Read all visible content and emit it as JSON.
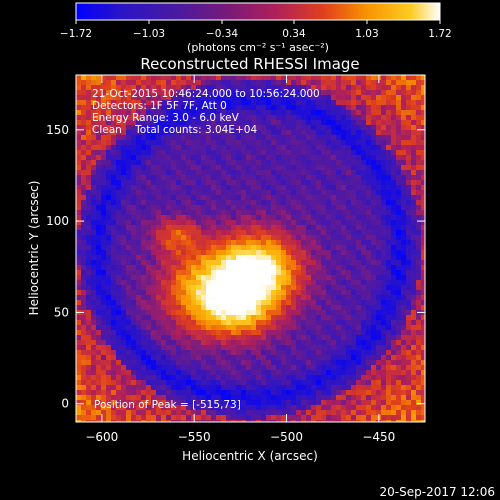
{
  "chart_data": {
    "type": "heatmap",
    "title": "Reconstructed RHESSI Image",
    "xlabel": "Heliocentric X (arcsec)",
    "ylabel": "Heliocentric Y (arcsec)",
    "xlim": [
      -614,
      -425
    ],
    "ylim": [
      -10,
      180
    ],
    "x_ticks": [
      -600,
      -550,
      -500,
      -450
    ],
    "x_tick_labels": [
      "−600",
      "−550",
      "−500",
      "−450"
    ],
    "y_ticks": [
      0,
      50,
      100,
      150
    ],
    "y_tick_labels": [
      "0",
      "50",
      "100",
      "150"
    ],
    "colorbar": {
      "min": -1.72,
      "max": 1.72,
      "ticks": [
        -1.72,
        -1.03,
        -0.34,
        0.34,
        1.03,
        1.72
      ],
      "tick_labels": [
        "−1.72",
        "−1.03",
        "−0.34",
        "0.34",
        "1.03",
        "1.72"
      ],
      "unit_label": "(photons cm⁻² s⁻¹ asec⁻²)",
      "colors": [
        "#0000ff",
        "#2a14c8",
        "#5a1a9a",
        "#b0205a",
        "#e0401c",
        "#f89400",
        "#fccc22",
        "#ffffff"
      ]
    },
    "annotations": [
      "21-Oct-2015 10:46:24.000 to 10:56:24.000",
      "Detectors: 1F 5F 7F, Att 0",
      "Energy Range: 3.0 - 6.0 keV",
      "Clean    Total counts: 3.04E+04"
    ],
    "peak_label": "Position of Peak = [-515,73]",
    "peak": [
      -515,
      73
    ]
  },
  "footer": {
    "timestamp": "20-Sep-2017 12:06"
  }
}
